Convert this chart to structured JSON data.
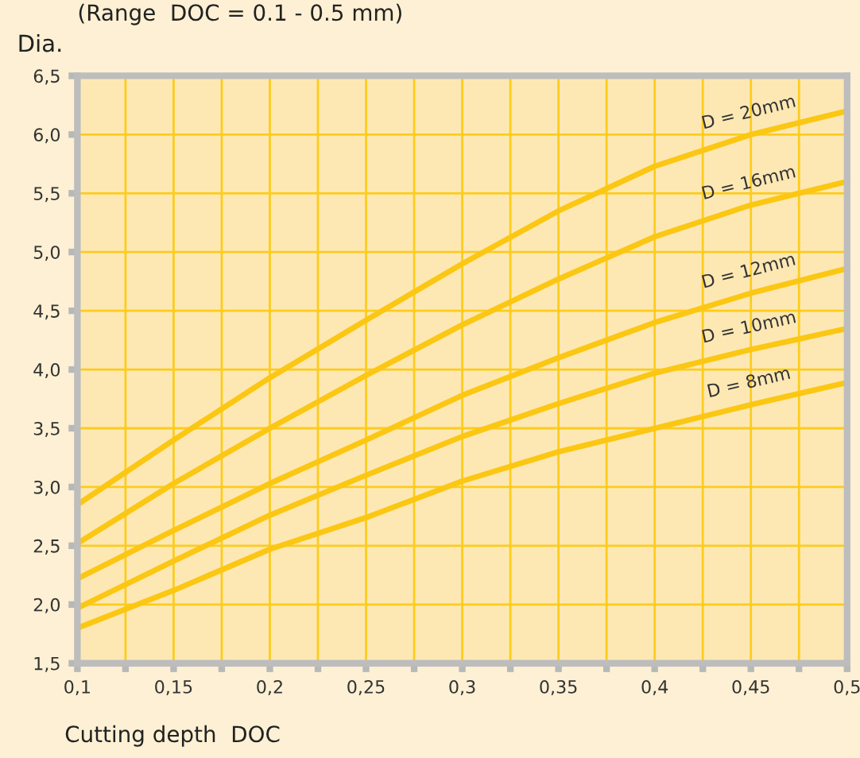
{
  "chart_data": {
    "type": "line",
    "title": "(Range  DOC = 0.1 - 0.5 mm)",
    "ylabel": "Dia.",
    "xlabel": "Cutting depth  DOC",
    "x": [
      0.1,
      0.15,
      0.2,
      0.25,
      0.3,
      0.35,
      0.4,
      0.45,
      0.5
    ],
    "series": [
      {
        "name": "D = 20mm",
        "color": "#fbc713",
        "values": [
          2.85,
          3.4,
          3.93,
          4.42,
          4.9,
          5.35,
          5.73,
          6.0,
          6.2
        ]
      },
      {
        "name": "D = 16mm",
        "color": "#fbc713",
        "values": [
          2.52,
          3.03,
          3.5,
          3.95,
          4.38,
          4.77,
          5.13,
          5.4,
          5.6
        ]
      },
      {
        "name": "D = 12mm",
        "color": "#fbc713",
        "values": [
          2.22,
          2.63,
          3.03,
          3.4,
          3.78,
          4.1,
          4.4,
          4.65,
          4.86
        ]
      },
      {
        "name": "D = 10mm",
        "color": "#fbc713",
        "values": [
          1.97,
          2.37,
          2.76,
          3.1,
          3.43,
          3.71,
          3.97,
          4.17,
          4.35
        ]
      },
      {
        "name": "D = 8mm",
        "color": "#fbc713",
        "values": [
          1.8,
          2.12,
          2.47,
          2.74,
          3.05,
          3.3,
          3.5,
          3.7,
          3.89
        ]
      }
    ],
    "xlim": [
      0.1,
      0.5
    ],
    "xticks": [
      {
        "value": 0.1,
        "label": "0,1"
      },
      {
        "value": 0.125,
        "label": null
      },
      {
        "value": 0.15,
        "label": "0,15"
      },
      {
        "value": 0.175,
        "label": null
      },
      {
        "value": 0.2,
        "label": "0,2"
      },
      {
        "value": 0.225,
        "label": null
      },
      {
        "value": 0.25,
        "label": "0,25"
      },
      {
        "value": 0.275,
        "label": null
      },
      {
        "value": 0.3,
        "label": "0,3"
      },
      {
        "value": 0.325,
        "label": null
      },
      {
        "value": 0.35,
        "label": "0,35"
      },
      {
        "value": 0.375,
        "label": null
      },
      {
        "value": 0.4,
        "label": "0,4"
      },
      {
        "value": 0.425,
        "label": null
      },
      {
        "value": 0.45,
        "label": "0,45"
      },
      {
        "value": 0.475,
        "label": null
      },
      {
        "value": 0.5,
        "label": "0,5"
      }
    ],
    "ylim": [
      1.5,
      6.5
    ],
    "yticks": [
      {
        "value": 1.5,
        "label": "1,5"
      },
      {
        "value": 2.0,
        "label": "2,0"
      },
      {
        "value": 2.5,
        "label": "2,5"
      },
      {
        "value": 3.0,
        "label": "3,0"
      },
      {
        "value": 3.5,
        "label": "3,5"
      },
      {
        "value": 4.0,
        "label": "4,0"
      },
      {
        "value": 4.5,
        "label": "4,5"
      },
      {
        "value": 5.0,
        "label": "5,0"
      },
      {
        "value": 5.5,
        "label": "5,5"
      },
      {
        "value": 6.0,
        "label": "6,0"
      },
      {
        "value": 6.5,
        "label": "6,5"
      }
    ],
    "grid": true,
    "legend": false,
    "line_style": "solid"
  }
}
